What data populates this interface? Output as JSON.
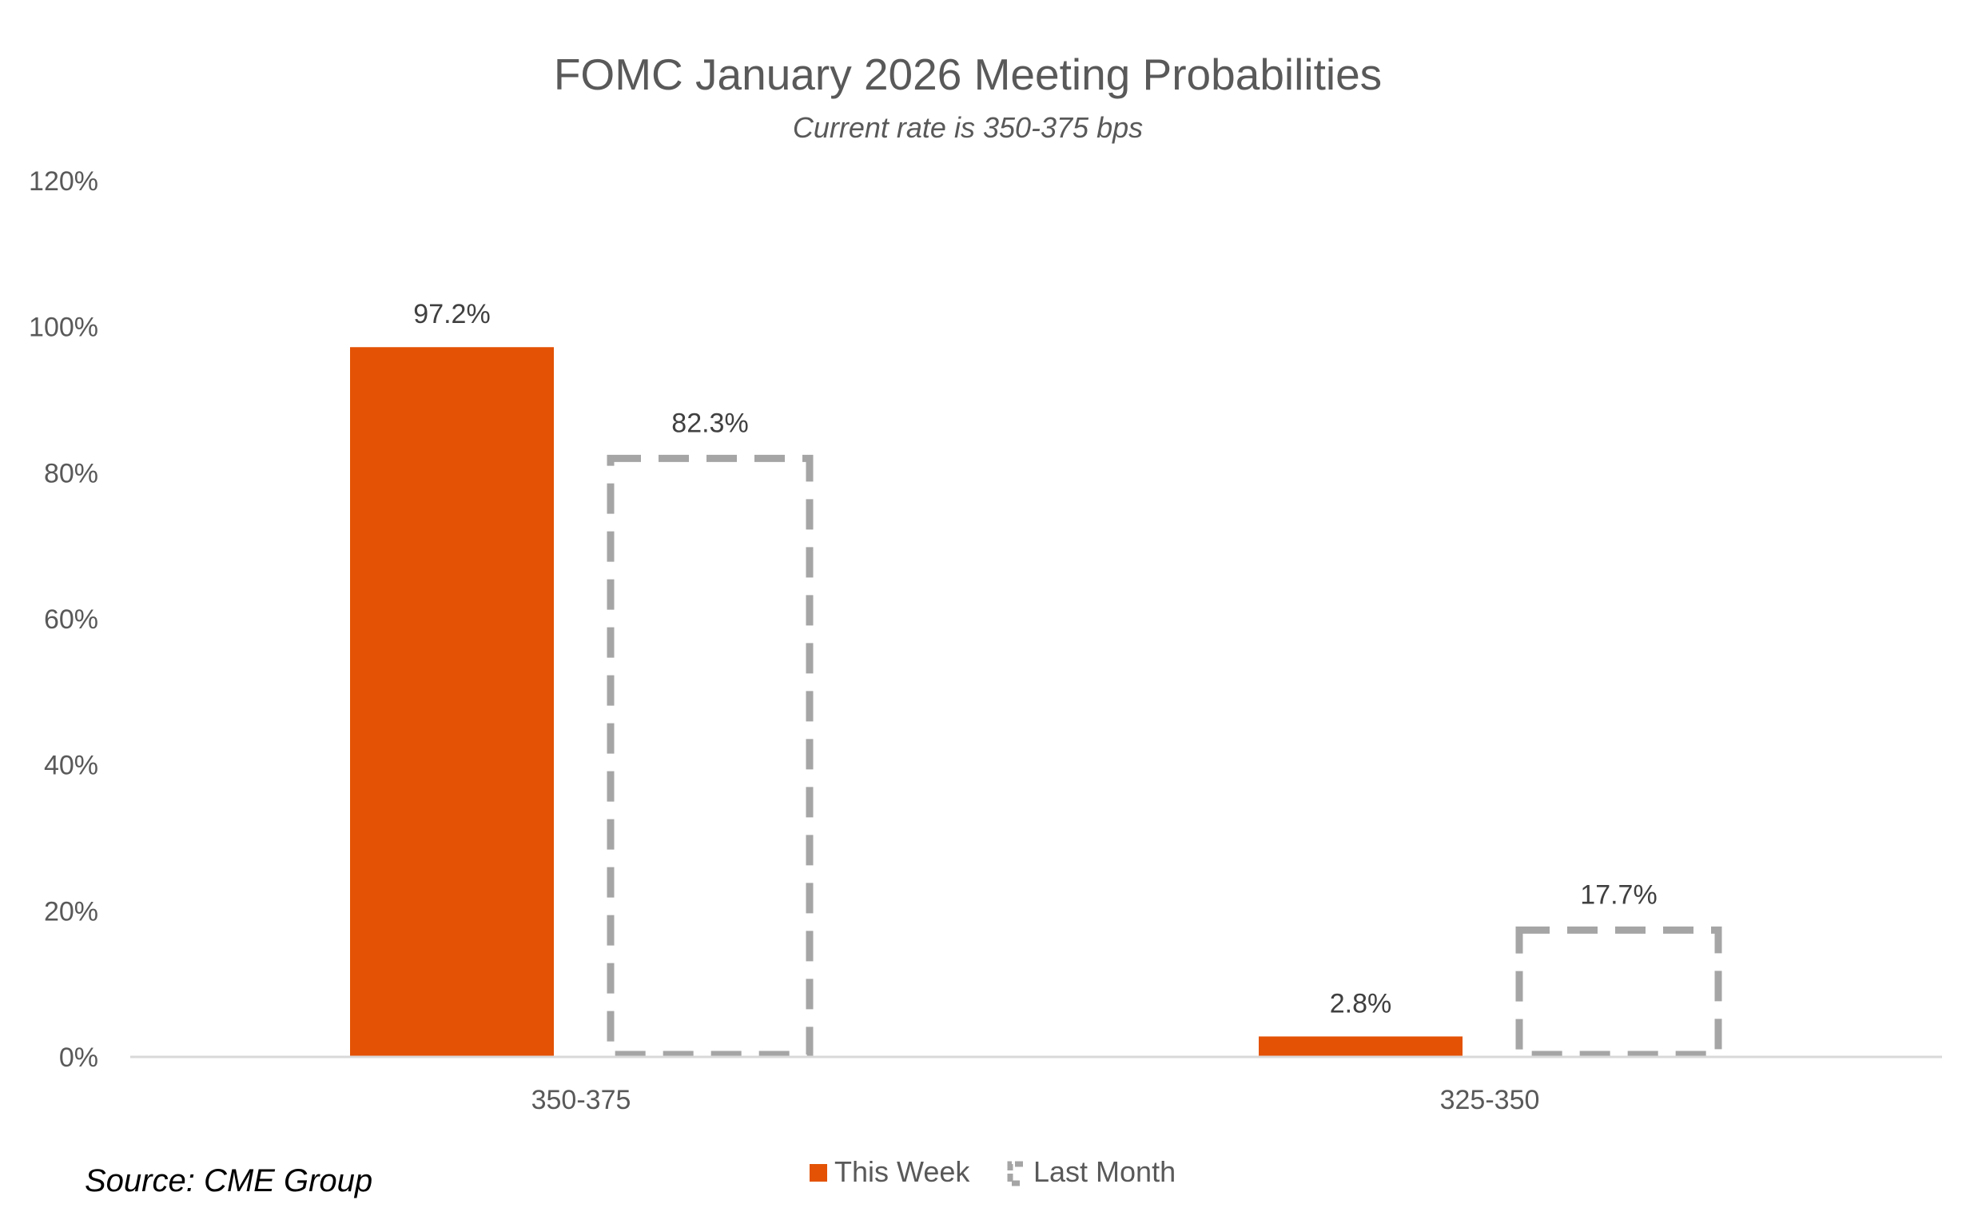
{
  "chart_data": {
    "type": "bar",
    "title": "FOMC January 2026 Meeting Probabilities",
    "subtitle": "Current rate is 350-375 bps",
    "categories": [
      "350-375",
      "325-350"
    ],
    "series": [
      {
        "name": "This Week",
        "values": [
          97.2,
          2.8
        ],
        "labels": [
          "97.2%",
          "2.8%"
        ],
        "color": "#E35205",
        "style": "solid"
      },
      {
        "name": "Last Month",
        "values": [
          82.3,
          17.7
        ],
        "labels": [
          "82.3%",
          "17.7%"
        ],
        "color": "#A5A5A5",
        "style": "dashed-outline"
      }
    ],
    "ylim": [
      0,
      120
    ],
    "yticks": [
      "0%",
      "20%",
      "40%",
      "60%",
      "80%",
      "100%",
      "120%"
    ],
    "grid": false,
    "legend": "bottom",
    "xlabel": "",
    "ylabel": ""
  },
  "source": "Source: CME Group",
  "colors": {
    "text": "#595959",
    "axis": "#D9D9D9"
  }
}
